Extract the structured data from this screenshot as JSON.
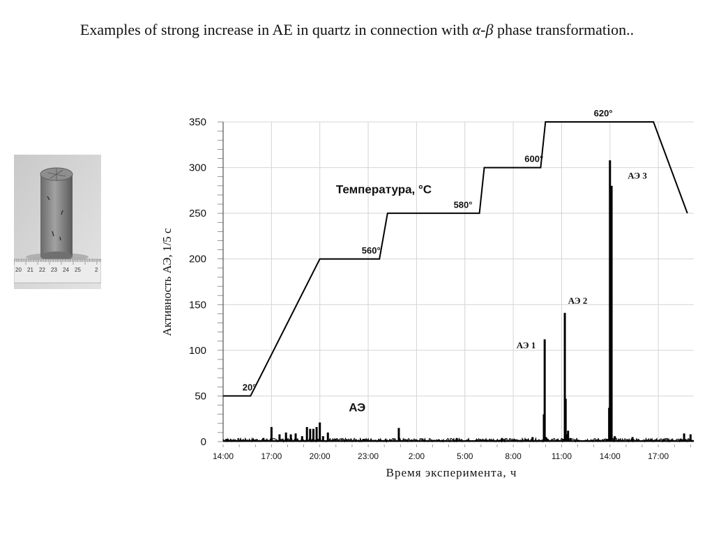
{
  "slide": {
    "title_before": "Examples of strong  increase in  AE in quartz in connection with ",
    "title_greek": "α-β",
    "title_after": " phase transformation.."
  },
  "photo": {
    "ruler_labels": [
      "20",
      "21",
      "22",
      "23",
      "24",
      "25",
      "2"
    ]
  },
  "chart_data": {
    "type": "line",
    "xlabel": "Время эксперимента, ч",
    "ylabel": "Активность АЭ, 1/5 с",
    "x_ticks": [
      "14:00",
      "17:00",
      "20:00",
      "23:00",
      "2:00",
      "5:00",
      "8:00",
      "11:00",
      "14:00",
      "17:00"
    ],
    "x_tick_hours": [
      0,
      3,
      6,
      9,
      12,
      15,
      18,
      21,
      24,
      27
    ],
    "xlim": [
      0,
      29.2
    ],
    "ylim": [
      0,
      350
    ],
    "y_ticks": [
      0,
      50,
      100,
      150,
      200,
      250,
      300,
      350
    ],
    "grid": true,
    "accent_color": "#000000",
    "series": [
      {
        "name": "Температура, °C",
        "x": [
          0,
          1.7,
          6.0,
          9.7,
          10.2,
          15.9,
          16.2,
          19.7,
          20.0,
          26.7,
          28.8
        ],
        "values": [
          50,
          50,
          200,
          200,
          250,
          250,
          300,
          300,
          350,
          350,
          250
        ]
      },
      {
        "name": "АЭ",
        "x": [
          0.2,
          2.5,
          3.0,
          3.5,
          3.9,
          4.2,
          4.5,
          4.9,
          5.2,
          5.4,
          5.6,
          5.8,
          6.0,
          6.2,
          6.5,
          7.0,
          8.7,
          10.9,
          14.5,
          17.3,
          19.2,
          19.9,
          19.95,
          20.03,
          20.1,
          21.1,
          21.2,
          21.25,
          21.3,
          21.4,
          21.55,
          23.8,
          23.95,
          24.0,
          24.1,
          24.3,
          25.4,
          28.6,
          29.0
        ],
        "values": [
          3,
          4,
          16,
          8,
          10,
          8,
          9,
          6,
          16,
          14,
          14,
          16,
          21,
          6,
          10,
          3,
          3,
          15,
          4,
          4,
          5,
          30,
          112,
          5,
          3,
          3,
          141,
          47,
          8,
          12,
          4,
          3,
          37,
          308,
          280,
          6,
          5,
          9,
          8
        ]
      }
    ],
    "annotations": [
      {
        "text": "Температура, °C",
        "x": 7.0,
        "y": 272
      },
      {
        "text": "АЭ",
        "x": 7.8,
        "y": 33
      },
      {
        "text": "20°",
        "x": 1.2,
        "y": 56
      },
      {
        "text": "560°",
        "x": 8.6,
        "y": 206
      },
      {
        "text": "580°",
        "x": 14.3,
        "y": 256
      },
      {
        "text": "600°",
        "x": 18.7,
        "y": 306
      },
      {
        "text": "620°",
        "x": 23.0,
        "y": 356
      },
      {
        "text": "АЭ 1",
        "x": 18.2,
        "y": 102
      },
      {
        "text": "АЭ 2",
        "x": 21.4,
        "y": 151
      },
      {
        "text": "АЭ 3",
        "x": 25.1,
        "y": 288
      }
    ]
  }
}
